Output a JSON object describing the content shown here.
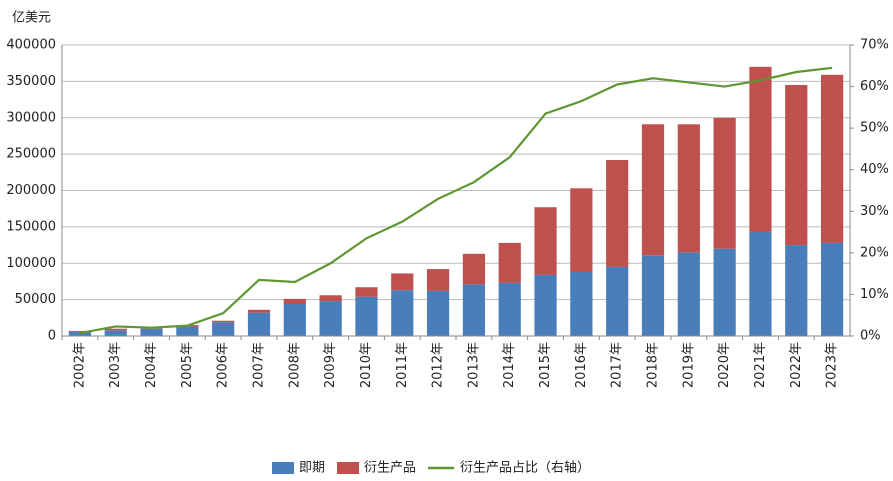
{
  "chart_data": {
    "type": "bar",
    "stacked": true,
    "y_label": "亿美元",
    "categories": [
      "2002年",
      "2003年",
      "2004年",
      "2005年",
      "2006年",
      "2007年",
      "2008年",
      "2009年",
      "2010年",
      "2011年",
      "2012年",
      "2013年",
      "2014年",
      "2015年",
      "2016年",
      "2017年",
      "2018年",
      "2019年",
      "2020年",
      "2021年",
      "2022年",
      "2023年"
    ],
    "series": [
      {
        "name": "即期",
        "type": "bar",
        "color": "#4a7ebb",
        "values": [
          6000,
          8000,
          10000,
          13000,
          19000,
          32000,
          44000,
          48000,
          54000,
          63000,
          62000,
          71000,
          73000,
          84000,
          88000,
          95000,
          111000,
          115000,
          120000,
          143000,
          125000,
          128000
        ]
      },
      {
        "name": "衍生产品",
        "type": "bar",
        "color": "#c0504d",
        "values": [
          1000,
          2000,
          2000,
          2000,
          2000,
          4000,
          7000,
          8000,
          13000,
          23000,
          30000,
          42000,
          55000,
          93000,
          115000,
          147000,
          180000,
          176000,
          180000,
          227000,
          220000,
          231000
        ]
      },
      {
        "name": "衍生产品占比（右轴）",
        "type": "line",
        "axis": "y2",
        "color": "#5e9732",
        "values": [
          0.7,
          2.3,
          2,
          2.5,
          5.5,
          13.5,
          13,
          17.5,
          23.5,
          27.5,
          33,
          37,
          43,
          53.5,
          56.5,
          60.5,
          62,
          61,
          60,
          61.5,
          63.5,
          64.5
        ]
      }
    ],
    "ylim": [
      0,
      400000
    ],
    "yticks": [
      0,
      50000,
      100000,
      150000,
      200000,
      250000,
      300000,
      350000,
      400000
    ],
    "y2lim": [
      0,
      70
    ],
    "y2ticks": [
      {
        "value": 0,
        "label": "0%"
      },
      {
        "value": 10,
        "label": "10%"
      },
      {
        "value": 20,
        "label": "20%"
      },
      {
        "value": 30,
        "label": "30%"
      },
      {
        "value": 40,
        "label": "40%"
      },
      {
        "value": 50,
        "label": "50%"
      },
      {
        "value": 60,
        "label": "60%"
      },
      {
        "value": 70,
        "label": "70%"
      }
    ],
    "grid": true,
    "legend": "bottom"
  }
}
